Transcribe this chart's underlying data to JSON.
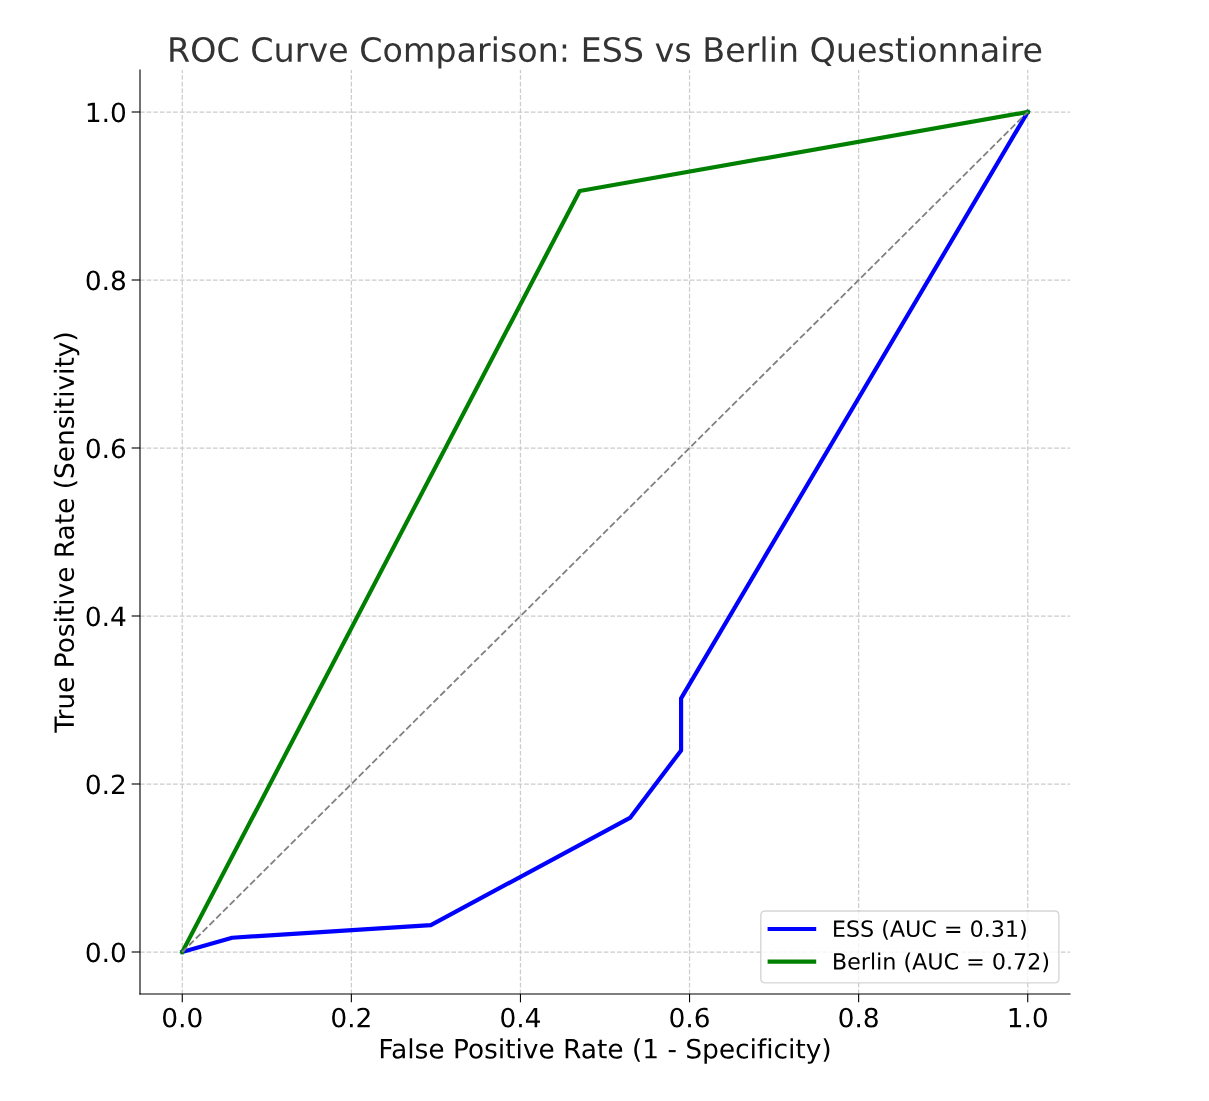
{
  "chart_data": {
    "type": "line",
    "title": "ROC Curve Comparison: ESS vs Berlin Questionnaire",
    "xlabel": "False Positive Rate (1 - Specificity)",
    "ylabel": "True Positive Rate (Sensitivity)",
    "xlim": [
      -0.05,
      1.05
    ],
    "ylim": [
      -0.05,
      1.05
    ],
    "xticks": [
      {
        "value": 0,
        "label": "0.0"
      },
      0.2,
      0.4,
      0.6,
      0.8,
      {
        "value": 1,
        "label": "1.0"
      }
    ],
    "yticks": [
      {
        "value": 0,
        "label": "0.0"
      },
      0.2,
      0.4,
      0.6,
      0.8,
      {
        "value": 1,
        "label": "1.0"
      }
    ],
    "grid": true,
    "legend": "bottom right",
    "marker": "none",
    "series": [
      {
        "name": "ESS (AUC = 0.31)",
        "color": "#0000ff",
        "x": [
          0,
          0.059,
          0.294,
          0.53,
          0.59,
          0.59,
          1
        ],
        "values": [
          0,
          0.017,
          0.032,
          0.16,
          0.24,
          0.302,
          1
        ],
        "line_style": "solid"
      },
      {
        "name": "Berlin (AUC = 0.72)",
        "color": "#008000",
        "x": [
          0,
          0.47,
          1
        ],
        "values": [
          0,
          0.906,
          1
        ],
        "line_style": "solid"
      },
      {
        "color": "#808080",
        "x": [
          0,
          1
        ],
        "values": [
          0,
          1
        ],
        "line_style": "dashed"
      }
    ]
  }
}
